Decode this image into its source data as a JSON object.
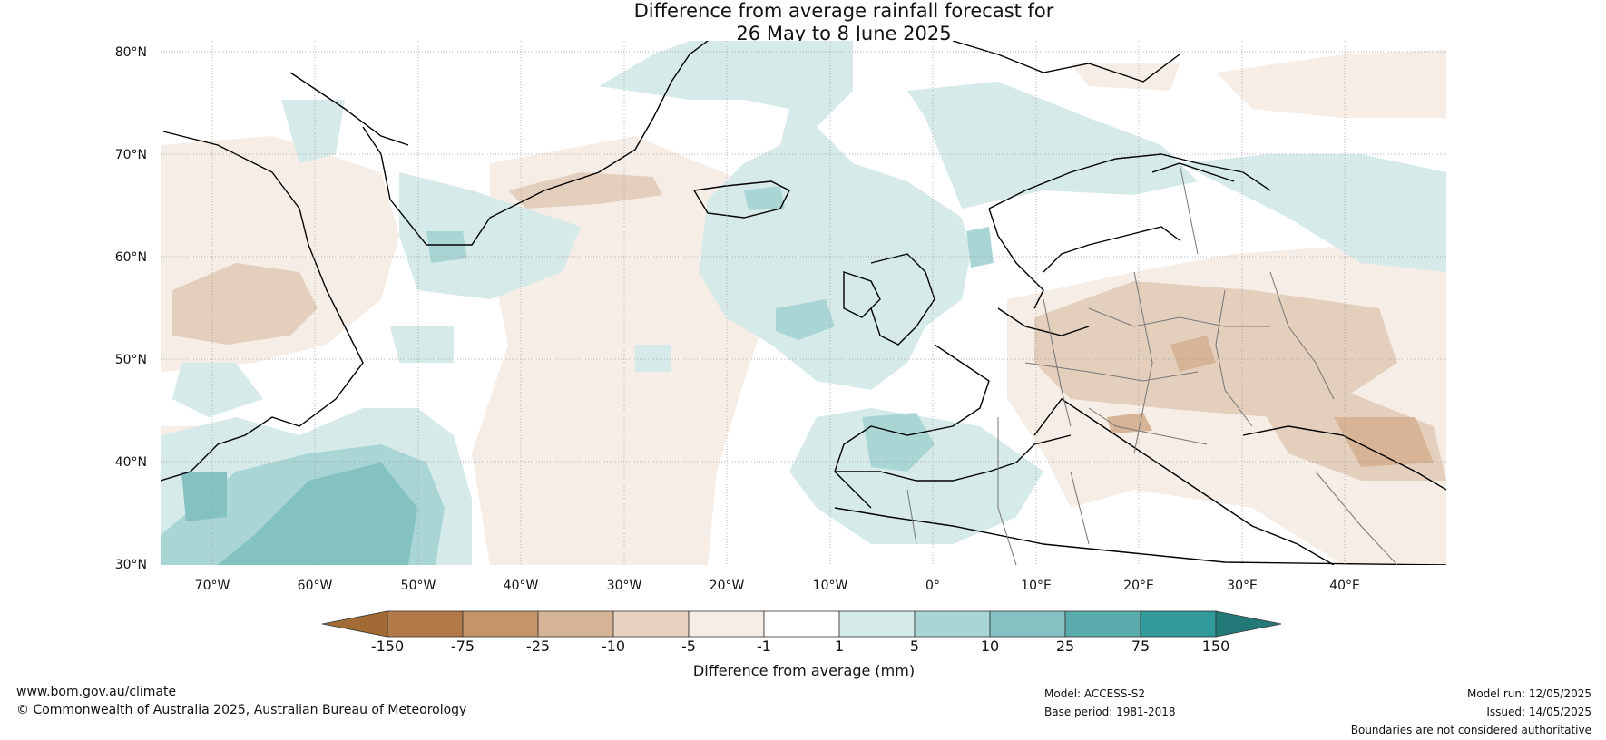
{
  "title_line1": "Difference from average rainfall forecast for",
  "title_line2": "26 May to 8 June 2025",
  "lat_labels": [
    "80°N",
    "70°N",
    "60°N",
    "50°N",
    "40°N",
    "30°N"
  ],
  "lon_labels": [
    "70°W",
    "60°W",
    "50°W",
    "40°W",
    "30°W",
    "20°W",
    "10°W",
    "0°",
    "10°E",
    "20°E",
    "30°E",
    "40°E"
  ],
  "colorbar": {
    "title": "Difference from average (mm)",
    "ticks": [
      "-150",
      "-75",
      "-25",
      "-10",
      "-5",
      "-1",
      "1",
      "5",
      "10",
      "25",
      "75",
      "150"
    ],
    "colors": [
      "#a26b35",
      "#b27a48",
      "#c59569",
      "#d7b495",
      "#e7d2c0",
      "#f5ede6",
      "#ffffff",
      "#d6eaea",
      "#aad5d5",
      "#84c2c2",
      "#5aacac",
      "#319a9a",
      "#237878"
    ]
  },
  "footer": {
    "website": "www.bom.gov.au/climate",
    "copyright": "© Commonwealth of Australia 2025, Australian Bureau of Meteorology",
    "model": "Model: ACCESS-S2",
    "base_period": "Base period: 1981-2018",
    "model_run": "Model run: 12/05/2025",
    "issued": "Issued: 14/05/2025",
    "disclaimer": "Boundaries are not considered authoritative"
  }
}
